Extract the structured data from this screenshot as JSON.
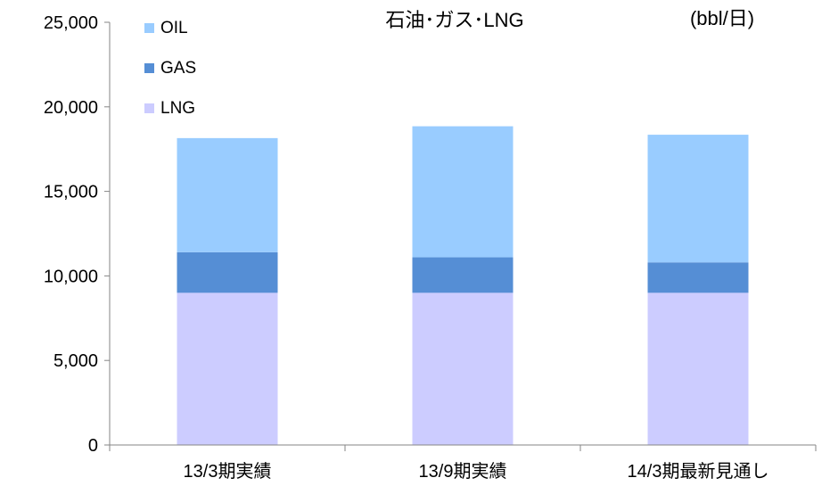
{
  "chart_data": {
    "type": "bar",
    "stacked": true,
    "title": "石油･ガス･LNG",
    "unit": "(bbl/日)",
    "xlabel": "",
    "ylabel": "",
    "ylim": [
      0,
      25000
    ],
    "yticks": [
      0,
      5000,
      10000,
      15000,
      20000,
      25000
    ],
    "ytick_labels": [
      "0",
      "5,000",
      "10,000",
      "15,000",
      "20,000",
      "25,000"
    ],
    "categories": [
      "13/3期実績",
      "13/9期実績",
      "14/3期最新見通し"
    ],
    "series": [
      {
        "name": "LNG",
        "color": "#ccccff",
        "values": [
          9000,
          9000,
          9000
        ]
      },
      {
        "name": "GAS",
        "color": "#558ed5",
        "values": [
          2400,
          2100,
          1800
        ]
      },
      {
        "name": "OIL",
        "color": "#99ccff",
        "values": [
          6750,
          7750,
          7550
        ]
      }
    ],
    "legend_order": [
      "OIL",
      "GAS",
      "LNG"
    ],
    "legend_position": "top-left",
    "grid": false
  }
}
